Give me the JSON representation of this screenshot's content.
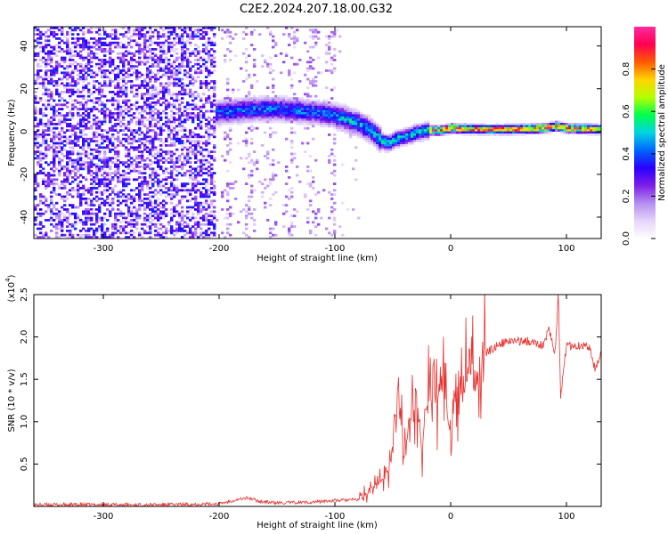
{
  "figure": {
    "title": "C2E2.2024.207.18.00.G32"
  },
  "chart_data": [
    {
      "type": "heatmap",
      "xlabel": "Height of straight line (km)",
      "ylabel": "Frequency (Hz)",
      "xlim": [
        -360,
        130
      ],
      "ylim": [
        -50,
        49
      ],
      "xticks": [
        -300,
        -200,
        -100,
        0,
        100
      ],
      "yticks": [
        -40,
        -20,
        0,
        20,
        40
      ],
      "colorbar": {
        "label": "Normalized spectral amplitude",
        "range": [
          0,
          1
        ],
        "ticks": [
          "0.0",
          "0.2",
          "0.4",
          "0.6",
          "0.8"
        ],
        "colormap": [
          "#ffffff",
          "#e6d4fa",
          "#b58ef0",
          "#7d1fe6",
          "#2a00ff",
          "#0066ff",
          "#00d5e0",
          "#00ff4c",
          "#b5ff00",
          "#ffd400",
          "#ff5a00",
          "#ff0050",
          "#ff2aa0"
        ]
      },
      "ridge": {
        "x": [
          -205,
          -190,
          -170,
          -150,
          -130,
          -110,
          -95,
          -80,
          -70,
          -60,
          -55,
          -48,
          -40,
          -30,
          -20,
          -10,
          0,
          20,
          50,
          80,
          90,
          100,
          130
        ],
        "y": [
          9,
          10,
          11,
          11,
          10,
          9,
          7,
          4,
          1,
          -4,
          -5,
          -3,
          -2,
          0,
          1,
          1,
          2,
          1.5,
          1.5,
          2,
          3,
          2,
          1.5
        ]
      }
    },
    {
      "type": "line",
      "xlabel": "Height of straight line (km)",
      "ylabel": "SNR (10 * v/v)",
      "ylabel_multiplier": "(x10",
      "ylabel_multiplier_exp": "4",
      "ylabel_multiplier_close": ")",
      "xlim": [
        -360,
        130
      ],
      "ylim": [
        0,
        2.5
      ],
      "xticks": [
        -300,
        -200,
        -100,
        0,
        100
      ],
      "yticks": [
        "0.5",
        "1.0",
        "1.5",
        "2.0",
        "2.5"
      ],
      "line_color": "#e8322f",
      "series": [
        {
          "x": [
            -360,
            -300,
            -250,
            -200,
            -185,
            -175,
            -165,
            -150,
            -120,
            -100,
            -80,
            -65,
            -55,
            -50,
            -45,
            -40,
            -35,
            -30,
            -25,
            -20,
            -15,
            -10,
            -5,
            0,
            5,
            10,
            15,
            20,
            25,
            30,
            40,
            50,
            60,
            70,
            80,
            85,
            90,
            93,
            95,
            100,
            110,
            120,
            125,
            130
          ],
          "y": [
            0.02,
            0.02,
            0.02,
            0.03,
            0.08,
            0.1,
            0.06,
            0.04,
            0.05,
            0.07,
            0.08,
            0.25,
            0.35,
            0.7,
            1.4,
            0.6,
            1.0,
            1.3,
            0.7,
            1.4,
            1.6,
            1.2,
            1.5,
            0.9,
            1.5,
            1.3,
            1.6,
            1.6,
            1.7,
            1.8,
            1.9,
            1.95,
            1.95,
            1.95,
            1.9,
            2.1,
            1.8,
            2.5,
            1.3,
            1.9,
            1.9,
            1.88,
            1.6,
            1.85
          ]
        }
      ]
    }
  ]
}
